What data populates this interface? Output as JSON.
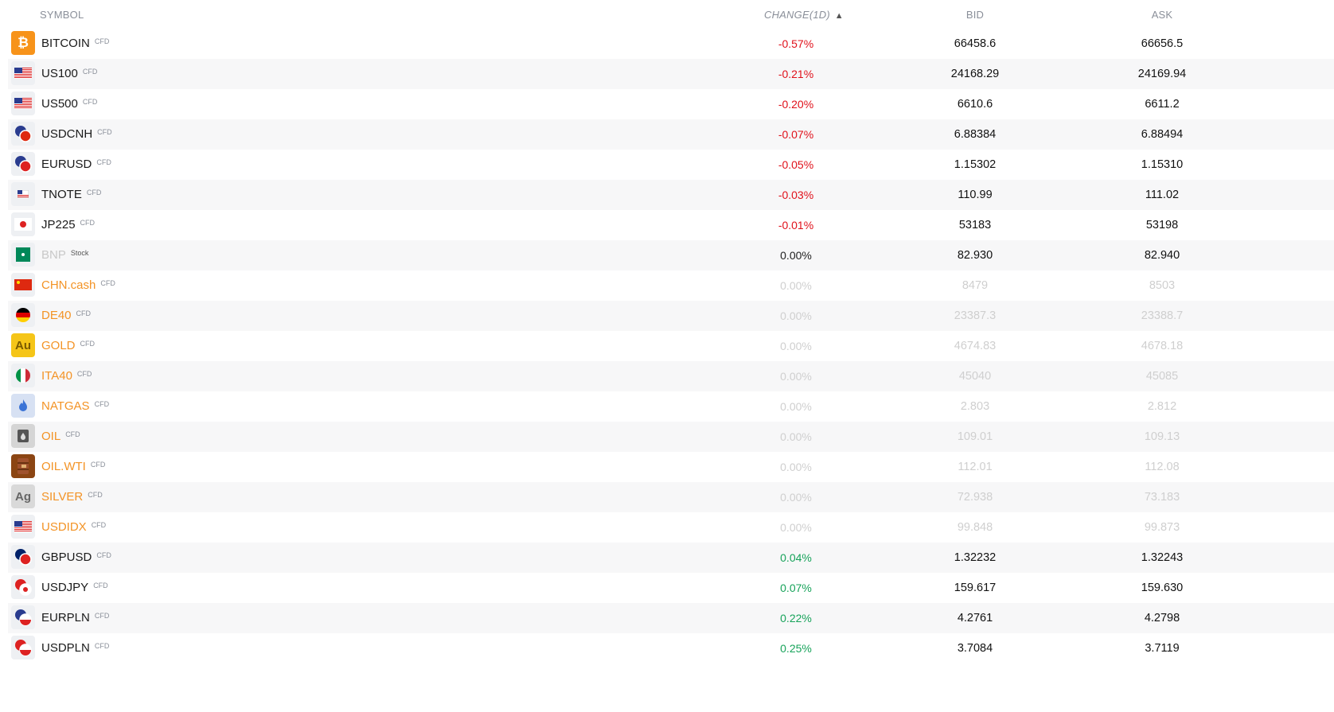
{
  "header": {
    "symbol": "SYMBOL",
    "change": "CHANGE(1D)",
    "change_arrow": "▲",
    "bid": "BID",
    "ask": "ASK"
  },
  "colors": {
    "negative": "#e0101a",
    "positive": "#17a35a",
    "inactive_value": "#cfcfcf",
    "inactive_symbol": "#f39325"
  },
  "rows": [
    {
      "symbol": "BITCOIN",
      "tag": "CFD",
      "change": "-0.57%",
      "bid": "66458.6",
      "ask": "66656.5",
      "icon": "bitcoin-icon",
      "state": "neg"
    },
    {
      "symbol": "US100",
      "tag": "CFD",
      "change": "-0.21%",
      "bid": "24168.29",
      "ask": "24169.94",
      "icon": "us-flag-100-icon",
      "state": "neg"
    },
    {
      "symbol": "US500",
      "tag": "CFD",
      "change": "-0.20%",
      "bid": "6610.6",
      "ask": "6611.2",
      "icon": "us-flag-500-icon",
      "state": "neg"
    },
    {
      "symbol": "USDCNH",
      "tag": "CFD",
      "change": "-0.07%",
      "bid": "6.88384",
      "ask": "6.88494",
      "icon": "usd-cnh-flags-icon",
      "state": "neg"
    },
    {
      "symbol": "EURUSD",
      "tag": "CFD",
      "change": "-0.05%",
      "bid": "1.15302",
      "ask": "1.15310",
      "icon": "eur-usd-flags-icon",
      "state": "neg"
    },
    {
      "symbol": "TNOTE",
      "tag": "CFD",
      "change": "-0.03%",
      "bid": "110.99",
      "ask": "111.02",
      "icon": "us-note-icon",
      "state": "neg"
    },
    {
      "symbol": "JP225",
      "tag": "CFD",
      "change": "-0.01%",
      "bid": "53183",
      "ask": "53198",
      "icon": "japan-flag-225-icon",
      "state": "neg"
    },
    {
      "symbol": "BNP",
      "tag": "Stock",
      "change": "0.00%",
      "bid": "82.930",
      "ask": "82.940",
      "icon": "bnp-logo-icon",
      "state": "stock"
    },
    {
      "symbol": "CHN.cash",
      "tag": "CFD",
      "change": "0.00%",
      "bid": "8479",
      "ask": "8503",
      "icon": "china-flag-icon",
      "state": "inactive"
    },
    {
      "symbol": "DE40",
      "tag": "CFD",
      "change": "0.00%",
      "bid": "23387.3",
      "ask": "23388.7",
      "icon": "germany-flag-40-icon",
      "state": "inactive"
    },
    {
      "symbol": "GOLD",
      "tag": "CFD",
      "change": "0.00%",
      "bid": "4674.83",
      "ask": "4678.18",
      "icon": "gold-au-icon",
      "state": "inactive"
    },
    {
      "symbol": "ITA40",
      "tag": "CFD",
      "change": "0.00%",
      "bid": "45040",
      "ask": "45085",
      "icon": "italy-flag-40-icon",
      "state": "inactive"
    },
    {
      "symbol": "NATGAS",
      "tag": "CFD",
      "change": "0.00%",
      "bid": "2.803",
      "ask": "2.812",
      "icon": "gas-flame-icon",
      "state": "inactive"
    },
    {
      "symbol": "OIL",
      "tag": "CFD",
      "change": "0.00%",
      "bid": "109.01",
      "ask": "109.13",
      "icon": "oil-barrel-icon",
      "state": "inactive"
    },
    {
      "symbol": "OIL.WTI",
      "tag": "CFD",
      "change": "0.00%",
      "bid": "112.01",
      "ask": "112.08",
      "icon": "wti-barrel-icon",
      "state": "inactive"
    },
    {
      "symbol": "SILVER",
      "tag": "CFD",
      "change": "0.00%",
      "bid": "72.938",
      "ask": "73.183",
      "icon": "silver-ag-icon",
      "state": "inactive"
    },
    {
      "symbol": "USDIDX",
      "tag": "CFD",
      "change": "0.00%",
      "bid": "99.848",
      "ask": "99.873",
      "icon": "us-flag-didx-icon",
      "state": "inactive"
    },
    {
      "symbol": "GBPUSD",
      "tag": "CFD",
      "change": "0.04%",
      "bid": "1.32232",
      "ask": "1.32243",
      "icon": "gbp-usd-flags-icon",
      "state": "pos"
    },
    {
      "symbol": "USDJPY",
      "tag": "CFD",
      "change": "0.07%",
      "bid": "159.617",
      "ask": "159.630",
      "icon": "usd-jpy-flags-icon",
      "state": "pos"
    },
    {
      "symbol": "EURPLN",
      "tag": "CFD",
      "change": "0.22%",
      "bid": "4.2761",
      "ask": "4.2798",
      "icon": "eur-pln-flags-icon",
      "state": "pos"
    },
    {
      "symbol": "USDPLN",
      "tag": "CFD",
      "change": "0.25%",
      "bid": "3.7084",
      "ask": "3.7119",
      "icon": "usd-pln-flags-icon",
      "state": "pos"
    }
  ]
}
